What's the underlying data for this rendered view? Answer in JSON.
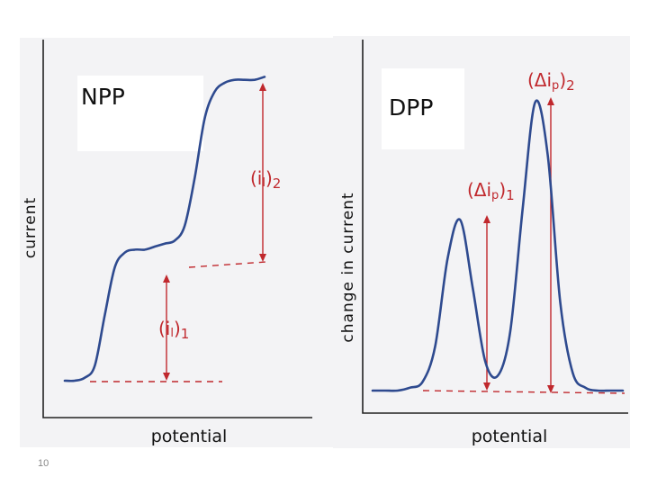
{
  "chart_data": [
    {
      "type": "line",
      "title": "NPP",
      "xlabel": "potential",
      "ylabel": "current",
      "description": "normal pulse polarogram: two sigmoidal waves (limiting currents)",
      "series": [
        {
          "name": "current",
          "x": [
            0.0,
            0.05,
            0.1,
            0.15,
            0.2,
            0.25,
            0.3,
            0.35,
            0.4,
            0.45,
            0.5,
            0.55,
            0.6,
            0.65,
            0.7,
            0.75,
            0.8,
            0.85,
            0.9,
            0.95,
            1.0
          ],
          "y": [
            0.0,
            0.0,
            0.01,
            0.05,
            0.22,
            0.38,
            0.43,
            0.44,
            0.44,
            0.45,
            0.46,
            0.47,
            0.52,
            0.68,
            0.88,
            0.97,
            1.0,
            1.01,
            1.01,
            1.01,
            1.02
          ]
        }
      ],
      "annotations": [
        {
          "label_main": "(i",
          "label_sub": "l",
          "label_close": ")",
          "label_index": "1"
        },
        {
          "label_main": "(i",
          "label_sub": "l",
          "label_close": ")",
          "label_index": "2"
        }
      ]
    },
    {
      "type": "line",
      "title": "DPP",
      "xlabel": "potential",
      "ylabel": "change in current",
      "description": "differential pulse polarogram: two peaks",
      "series": [
        {
          "name": "change in current",
          "x": [
            0.0,
            0.05,
            0.1,
            0.15,
            0.2,
            0.25,
            0.3,
            0.35,
            0.4,
            0.45,
            0.5,
            0.55,
            0.6,
            0.65,
            0.7,
            0.75,
            0.8,
            0.85,
            0.9,
            0.95,
            1.0
          ],
          "y": [
            0.0,
            0.0,
            0.0,
            0.01,
            0.03,
            0.15,
            0.45,
            0.58,
            0.35,
            0.1,
            0.05,
            0.2,
            0.62,
            0.98,
            0.8,
            0.3,
            0.06,
            0.01,
            0.0,
            0.0,
            0.0
          ]
        }
      ],
      "annotations": [
        {
          "label_main": "(Δi",
          "label_sub": "p",
          "label_close": ")",
          "label_index": "1"
        },
        {
          "label_main": "(Δi",
          "label_sub": "p",
          "label_close": ")",
          "label_index": "2"
        }
      ]
    }
  ],
  "page_number": "10"
}
